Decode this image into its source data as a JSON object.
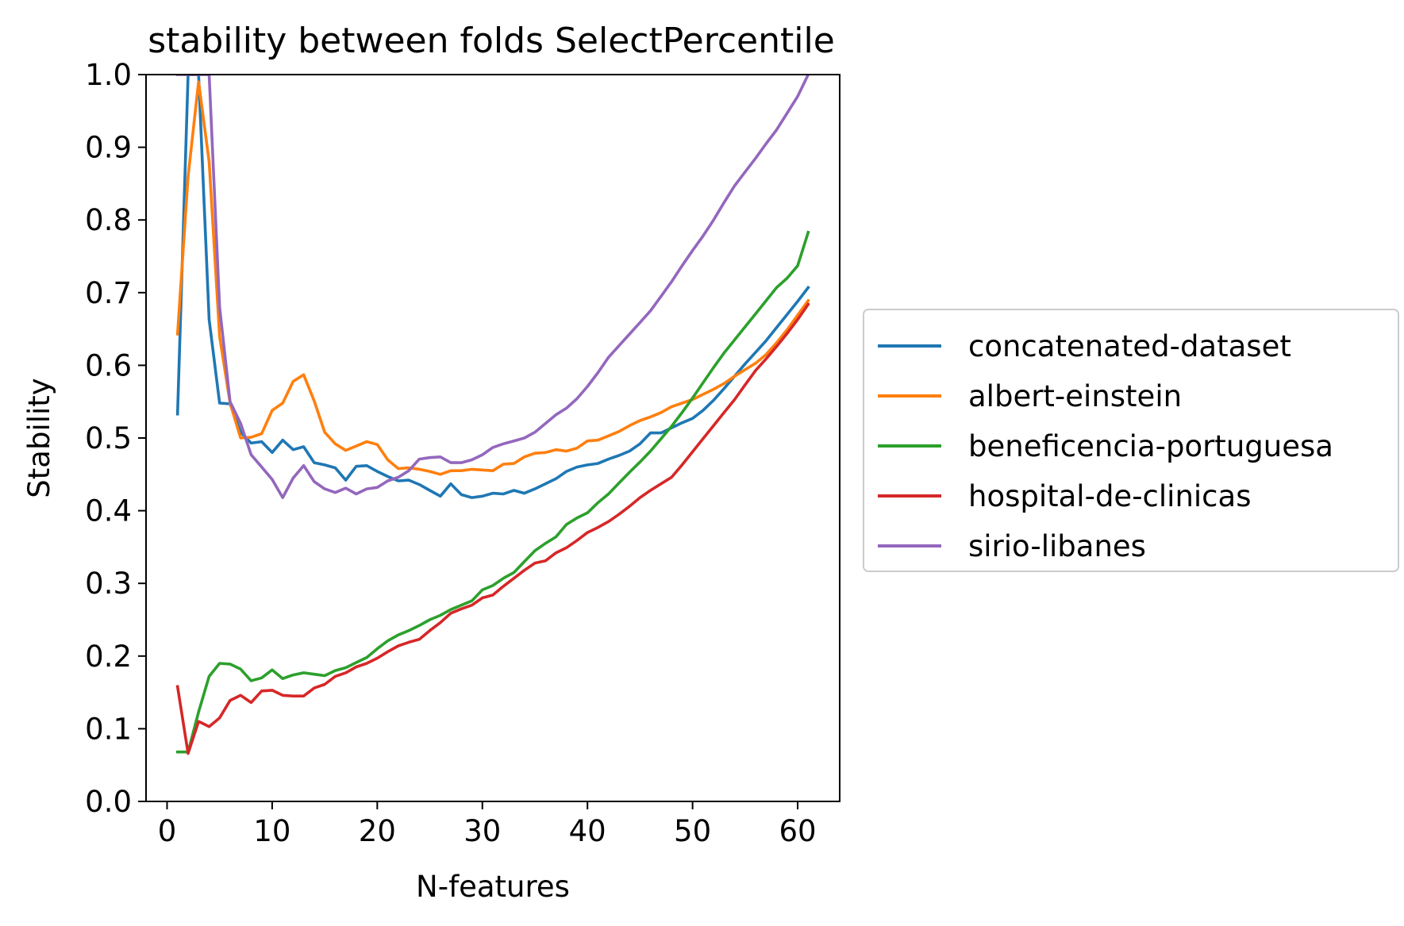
{
  "chart_data": {
    "type": "line",
    "title": "stability between folds SelectPercentile",
    "xlabel": "N-features",
    "ylabel": "Stability",
    "xlim": [
      -2,
      64
    ],
    "ylim": [
      0.0,
      1.0
    ],
    "xticks": [
      0,
      10,
      20,
      30,
      40,
      50,
      60
    ],
    "yticks": [
      0.0,
      0.1,
      0.2,
      0.3,
      0.4,
      0.5,
      0.6,
      0.7,
      0.8,
      0.9,
      1.0
    ],
    "xtick_labels": [
      "0",
      "10",
      "20",
      "30",
      "40",
      "50",
      "60"
    ],
    "ytick_labels": [
      "0.0",
      "0.1",
      "0.2",
      "0.3",
      "0.4",
      "0.5",
      "0.6",
      "0.7",
      "0.8",
      "0.9",
      "1.0"
    ],
    "grid": false,
    "legend_position": "outside-right",
    "x": [
      1,
      2,
      3,
      4,
      5,
      6,
      7,
      8,
      9,
      10,
      11,
      12,
      13,
      14,
      15,
      16,
      17,
      18,
      19,
      20,
      21,
      22,
      23,
      24,
      25,
      26,
      27,
      28,
      29,
      30,
      31,
      32,
      33,
      34,
      35,
      36,
      37,
      38,
      39,
      40,
      41,
      42,
      43,
      44,
      45,
      46,
      47,
      48,
      49,
      50,
      51,
      52,
      53,
      54,
      55,
      56,
      57,
      58,
      59,
      60,
      61
    ],
    "series": [
      {
        "name": "concatenated-dataset",
        "color": "#1f77b4",
        "values": [
          0.533,
          1.0,
          1.0,
          0.663,
          0.548,
          0.547,
          0.508,
          0.493,
          0.495,
          0.48,
          0.497,
          0.484,
          0.488,
          0.466,
          0.463,
          0.459,
          0.442,
          0.461,
          0.462,
          0.454,
          0.447,
          0.441,
          0.442,
          0.436,
          0.428,
          0.42,
          0.437,
          0.422,
          0.418,
          0.42,
          0.424,
          0.423,
          0.428,
          0.424,
          0.43,
          0.437,
          0.444,
          0.454,
          0.46,
          0.463,
          0.465,
          0.471,
          0.476,
          0.482,
          0.492,
          0.507,
          0.507,
          0.514,
          0.521,
          0.527,
          0.538,
          0.552,
          0.568,
          0.585,
          0.602,
          0.618,
          0.634,
          0.652,
          0.67,
          0.688,
          0.707
        ]
      },
      {
        "name": "albert-einstein",
        "color": "#ff7f0e",
        "values": [
          0.643,
          0.86,
          0.99,
          0.88,
          0.64,
          0.548,
          0.5,
          0.501,
          0.506,
          0.538,
          0.548,
          0.578,
          0.587,
          0.551,
          0.508,
          0.492,
          0.483,
          0.489,
          0.495,
          0.491,
          0.47,
          0.458,
          0.459,
          0.457,
          0.454,
          0.45,
          0.455,
          0.455,
          0.457,
          0.456,
          0.455,
          0.464,
          0.465,
          0.474,
          0.479,
          0.48,
          0.484,
          0.482,
          0.486,
          0.496,
          0.497,
          0.503,
          0.509,
          0.517,
          0.524,
          0.529,
          0.535,
          0.543,
          0.548,
          0.553,
          0.56,
          0.567,
          0.575,
          0.585,
          0.594,
          0.603,
          0.615,
          0.631,
          0.649,
          0.669,
          0.689
        ]
      },
      {
        "name": "beneficencia-portuguesa",
        "color": "#2ca02c",
        "values": [
          0.068,
          0.068,
          0.123,
          0.172,
          0.19,
          0.189,
          0.182,
          0.166,
          0.17,
          0.181,
          0.169,
          0.174,
          0.177,
          0.175,
          0.173,
          0.18,
          0.184,
          0.191,
          0.198,
          0.21,
          0.221,
          0.229,
          0.235,
          0.242,
          0.25,
          0.256,
          0.264,
          0.27,
          0.276,
          0.291,
          0.297,
          0.307,
          0.315,
          0.33,
          0.345,
          0.355,
          0.364,
          0.381,
          0.39,
          0.397,
          0.411,
          0.423,
          0.438,
          0.453,
          0.467,
          0.482,
          0.499,
          0.516,
          0.535,
          0.555,
          0.576,
          0.597,
          0.617,
          0.635,
          0.653,
          0.671,
          0.689,
          0.707,
          0.72,
          0.737,
          0.783
        ]
      },
      {
        "name": "hospital-de-clinicas",
        "color": "#d62728",
        "values": [
          0.158,
          0.066,
          0.11,
          0.103,
          0.115,
          0.139,
          0.146,
          0.136,
          0.152,
          0.153,
          0.146,
          0.145,
          0.145,
          0.156,
          0.161,
          0.172,
          0.177,
          0.185,
          0.19,
          0.197,
          0.206,
          0.214,
          0.219,
          0.223,
          0.235,
          0.246,
          0.259,
          0.265,
          0.27,
          0.28,
          0.284,
          0.296,
          0.307,
          0.318,
          0.328,
          0.331,
          0.342,
          0.349,
          0.359,
          0.37,
          0.377,
          0.385,
          0.395,
          0.406,
          0.418,
          0.428,
          0.437,
          0.446,
          0.463,
          0.481,
          0.499,
          0.517,
          0.535,
          0.553,
          0.573,
          0.593,
          0.609,
          0.626,
          0.644,
          0.663,
          0.684
        ]
      },
      {
        "name": "sirio-libanes",
        "color": "#9467bd",
        "values": [
          1.0,
          1.0,
          1.0,
          1.0,
          0.68,
          0.55,
          0.52,
          0.477,
          0.46,
          0.443,
          0.418,
          0.445,
          0.462,
          0.44,
          0.43,
          0.425,
          0.431,
          0.423,
          0.43,
          0.432,
          0.441,
          0.446,
          0.455,
          0.471,
          0.473,
          0.474,
          0.466,
          0.466,
          0.47,
          0.477,
          0.487,
          0.492,
          0.496,
          0.5,
          0.508,
          0.52,
          0.532,
          0.541,
          0.554,
          0.571,
          0.59,
          0.611,
          0.627,
          0.643,
          0.659,
          0.675,
          0.695,
          0.715,
          0.737,
          0.758,
          0.778,
          0.8,
          0.824,
          0.847,
          0.866,
          0.885,
          0.905,
          0.924,
          0.947,
          0.97,
          1.0
        ]
      }
    ]
  }
}
